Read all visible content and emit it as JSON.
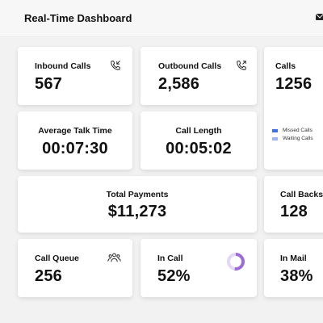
{
  "header": {
    "title": "Real-Time Dashboard",
    "mail_icon": "mail-icon"
  },
  "cards": {
    "inbound": {
      "label": "Inbound Calls",
      "value": "567",
      "icon": "phone-incoming-icon"
    },
    "outbound": {
      "label": "Outbound Calls",
      "value": "2,586",
      "icon": "phone-outgoing-icon"
    },
    "calls": {
      "label": "Calls",
      "value": "1256",
      "legend": [
        {
          "label": "Missed Calls",
          "color": "#3f6fe0"
        },
        {
          "label": "Waiting Calls",
          "color": "#9db6f3"
        }
      ]
    },
    "avg_talk": {
      "label": "Average Talk Time",
      "value": "00:07:30"
    },
    "call_length": {
      "label": "Call Length",
      "value": "00:05:02"
    },
    "total_payments": {
      "label": "Total Payments",
      "value": "$11,273"
    },
    "call_backs": {
      "label": "Call Backs",
      "value": "128"
    },
    "call_queue": {
      "label": "Call Queue",
      "value": "256",
      "icon": "users-group-icon"
    },
    "in_call": {
      "label": "In Call",
      "value": "52%",
      "ring_fraction": 0.52,
      "ring_color": "#9b6dd6",
      "ring_track": "#e4d6f5"
    },
    "in_mail": {
      "label": "In Mail",
      "value": "38%"
    }
  }
}
